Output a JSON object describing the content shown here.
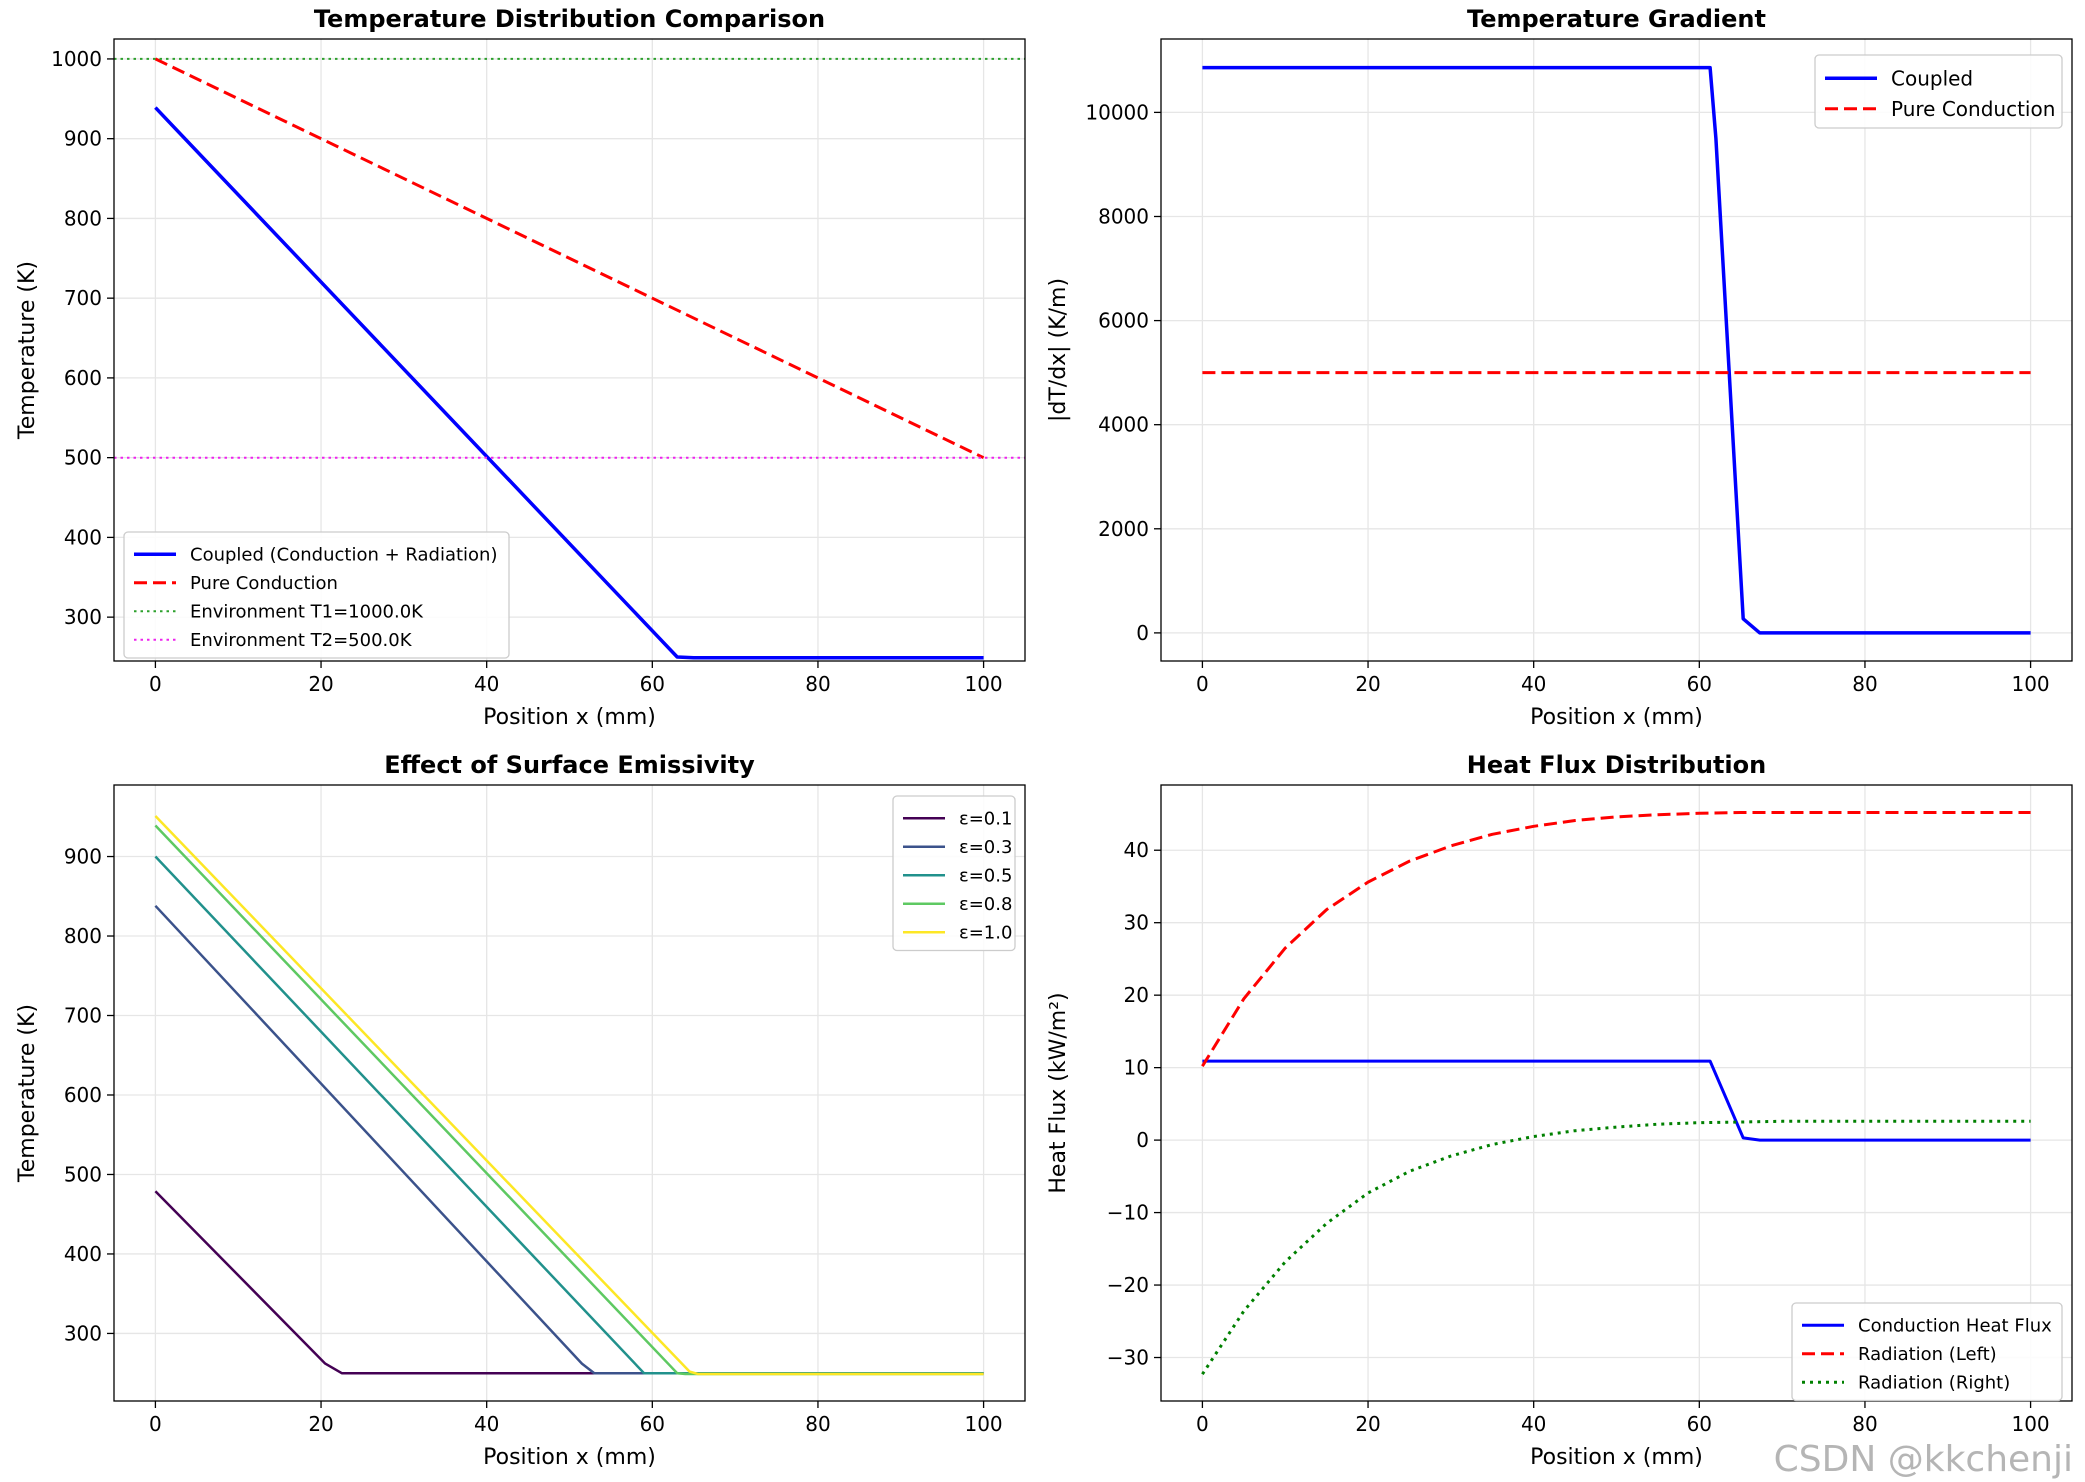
{
  "watermark": "CSDN @kkchenji",
  "chart_data": [
    {
      "type": "line",
      "title": "Temperature Distribution Comparison",
      "xlabel": "Position x (mm)",
      "ylabel": "Temperature (K)",
      "xlim": [
        -5,
        105
      ],
      "ylim": [
        245,
        1025
      ],
      "xticks": [
        0,
        20,
        40,
        60,
        80,
        100
      ],
      "yticks": [
        300,
        400,
        500,
        600,
        700,
        800,
        900,
        1000
      ],
      "grid": true,
      "legend": "lower-left",
      "series": [
        {
          "name": "Coupled (Conduction + Radiation)",
          "color": "#0000ff",
          "style": "solid",
          "width": 3.5,
          "x": [
            0,
            63,
            65,
            100
          ],
          "y": [
            939,
            250,
            249,
            249
          ]
        },
        {
          "name": "Pure Conduction",
          "color": "#ff0000",
          "style": "dashed",
          "width": 3,
          "x": [
            0,
            100
          ],
          "y": [
            1000,
            500
          ]
        },
        {
          "name": "Environment T1=1000.0K",
          "color": "#2ca02c",
          "style": "dotted",
          "width": 2,
          "x": [
            -5,
            105
          ],
          "y": [
            1000,
            1000
          ]
        },
        {
          "name": "Environment T2=500.0K",
          "color": "#ee22ee",
          "style": "dotted",
          "width": 2,
          "x": [
            -5,
            105
          ],
          "y": [
            500,
            500
          ]
        }
      ]
    },
    {
      "type": "line",
      "title": "Temperature Gradient",
      "xlabel": "Position x (mm)",
      "ylabel": "|dT/dx| (K/m)",
      "xlim": [
        -5,
        105
      ],
      "ylim": [
        -540,
        11410
      ],
      "xticks": [
        0,
        20,
        40,
        60,
        80,
        100
      ],
      "yticks": [
        0,
        2000,
        4000,
        6000,
        8000,
        10000
      ],
      "grid": true,
      "legend": "upper-right",
      "series": [
        {
          "name": "Coupled",
          "color": "#0000ff",
          "style": "solid",
          "width": 3.5,
          "x": [
            0,
            61.3,
            62,
            65.3,
            67.3,
            100
          ],
          "y": [
            10860,
            10860,
            9500,
            270,
            0,
            0
          ]
        },
        {
          "name": "Pure Conduction",
          "color": "#ff0000",
          "style": "dashed",
          "width": 3,
          "x": [
            0,
            100
          ],
          "y": [
            5000,
            5000
          ]
        }
      ]
    },
    {
      "type": "line",
      "title": "Effect of Surface Emissivity",
      "xlabel": "Position x (mm)",
      "ylabel": "Temperature (K)",
      "xlim": [
        -5,
        105
      ],
      "ylim": [
        215,
        990
      ],
      "xticks": [
        0,
        20,
        40,
        60,
        80,
        100
      ],
      "yticks": [
        300,
        400,
        500,
        600,
        700,
        800,
        900
      ],
      "grid": true,
      "legend": "upper-right",
      "series": [
        {
          "name": "ε=0.1",
          "color": "#440154",
          "style": "solid",
          "width": 2.5,
          "x": [
            0,
            20.5,
            22.5,
            100
          ],
          "y": [
            479,
            262,
            250,
            250
          ]
        },
        {
          "name": "ε=0.3",
          "color": "#3b528b",
          "style": "solid",
          "width": 2.5,
          "x": [
            0,
            51.5,
            53,
            100
          ],
          "y": [
            838,
            262,
            250,
            250
          ]
        },
        {
          "name": "ε=0.5",
          "color": "#21918c",
          "style": "solid",
          "width": 2.5,
          "x": [
            0,
            59,
            100
          ],
          "y": [
            900,
            250,
            250
          ]
        },
        {
          "name": "ε=0.8",
          "color": "#5ec962",
          "style": "solid",
          "width": 2.5,
          "x": [
            0,
            63,
            64,
            100
          ],
          "y": [
            939,
            250,
            249,
            249
          ]
        },
        {
          "name": "ε=1.0",
          "color": "#fde725",
          "style": "solid",
          "width": 2.5,
          "x": [
            0,
            64.5,
            65.5,
            100
          ],
          "y": [
            951,
            252,
            249,
            249
          ]
        }
      ]
    },
    {
      "type": "line",
      "title": "Heat Flux Distribution",
      "xlabel": "Position x (mm)",
      "ylabel": "Heat Flux (kW/m²)",
      "xlim": [
        -5,
        105
      ],
      "ylim": [
        -36,
        49
      ],
      "xticks": [
        0,
        20,
        40,
        60,
        80,
        100
      ],
      "yticks": [
        -30,
        -20,
        -10,
        0,
        10,
        20,
        30,
        40
      ],
      "grid": true,
      "legend": "lower-right",
      "series": [
        {
          "name": "Conduction Heat Flux",
          "color": "#0000ff",
          "style": "solid",
          "width": 3,
          "x": [
            0,
            61.3,
            65.3,
            67.3,
            100
          ],
          "y": [
            10.9,
            10.9,
            0.3,
            0,
            0
          ]
        },
        {
          "name": "Radiation (Left)",
          "color": "#ff0000",
          "style": "dashed",
          "width": 3,
          "x": [
            0,
            5,
            10,
            15,
            20,
            25,
            30,
            35,
            40,
            45,
            50,
            55,
            60,
            65,
            70,
            80,
            90,
            100
          ],
          "y": [
            10.2,
            19.5,
            26.5,
            31.8,
            35.6,
            38.5,
            40.6,
            42.2,
            43.3,
            44.1,
            44.6,
            44.9,
            45.1,
            45.2,
            45.2,
            45.2,
            45.2,
            45.2
          ]
        },
        {
          "name": "Radiation (Right)",
          "color": "#008000",
          "style": "dotted",
          "width": 3,
          "x": [
            0,
            5,
            10,
            15,
            20,
            25,
            30,
            35,
            40,
            45,
            50,
            55,
            60,
            65,
            70,
            80,
            90,
            100
          ],
          "y": [
            -32.3,
            -23.6,
            -16.8,
            -11.5,
            -7.3,
            -4.3,
            -2.2,
            -0.6,
            0.5,
            1.3,
            1.8,
            2.2,
            2.4,
            2.5,
            2.6,
            2.6,
            2.6,
            2.6
          ]
        }
      ]
    }
  ]
}
